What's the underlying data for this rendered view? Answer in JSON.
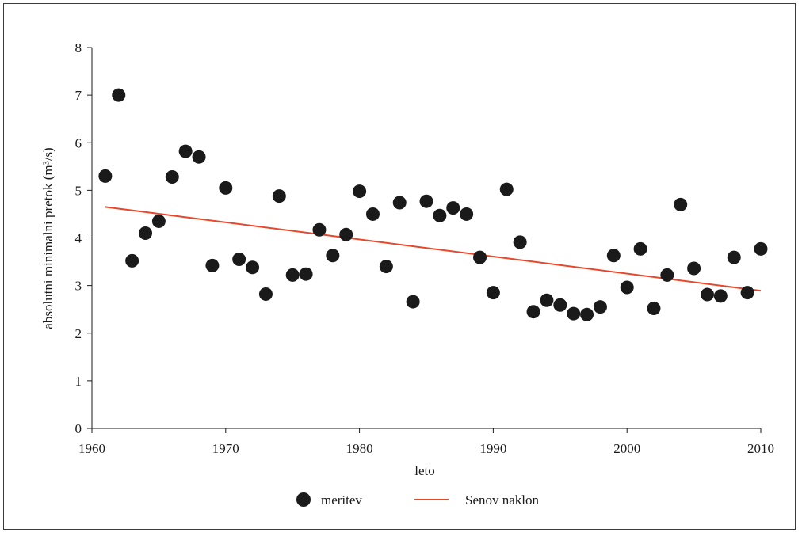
{
  "chart_data": {
    "type": "scatter",
    "xlabel": "leto",
    "ylabel": "absolutni minimalni pretok (m³/s)",
    "xlim": [
      1960,
      2010
    ],
    "ylim": [
      0,
      8
    ],
    "xticks": [
      1960,
      1970,
      1980,
      1990,
      2000,
      2010
    ],
    "yticks": [
      0,
      1,
      2,
      3,
      4,
      5,
      6,
      7,
      8
    ],
    "grid": false,
    "legend_position": "bottom",
    "series": [
      {
        "name": "meritev",
        "kind": "scatter",
        "color": "#1a1a1a",
        "x": [
          1961,
          1962,
          1963,
          1964,
          1965,
          1966,
          1967,
          1968,
          1969,
          1970,
          1971,
          1972,
          1973,
          1974,
          1975,
          1976,
          1977,
          1978,
          1979,
          1980,
          1981,
          1982,
          1983,
          1984,
          1985,
          1986,
          1987,
          1988,
          1989,
          1990,
          1991,
          1992,
          1993,
          1994,
          1995,
          1996,
          1997,
          1998,
          1999,
          2000,
          2001,
          2002,
          2003,
          2004,
          2005,
          2006,
          2007,
          2008,
          2009,
          2010
        ],
        "y": [
          5.3,
          7.0,
          3.52,
          4.1,
          4.35,
          5.28,
          5.82,
          5.7,
          3.42,
          5.05,
          3.55,
          3.38,
          2.82,
          4.88,
          3.22,
          3.24,
          4.17,
          3.63,
          4.07,
          4.98,
          4.5,
          3.4,
          4.74,
          2.66,
          4.77,
          4.47,
          4.63,
          4.5,
          3.59,
          2.85,
          5.02,
          3.91,
          2.45,
          2.69,
          2.59,
          2.41,
          2.39,
          2.55,
          3.63,
          2.96,
          3.77,
          2.52,
          3.22,
          4.7,
          3.36,
          2.81,
          2.78,
          3.59,
          2.85,
          3.77
        ]
      },
      {
        "name": "Senov naklon",
        "kind": "line",
        "color": "#e8472a",
        "x": [
          1961,
          2010
        ],
        "y": [
          4.65,
          2.89
        ]
      }
    ]
  }
}
